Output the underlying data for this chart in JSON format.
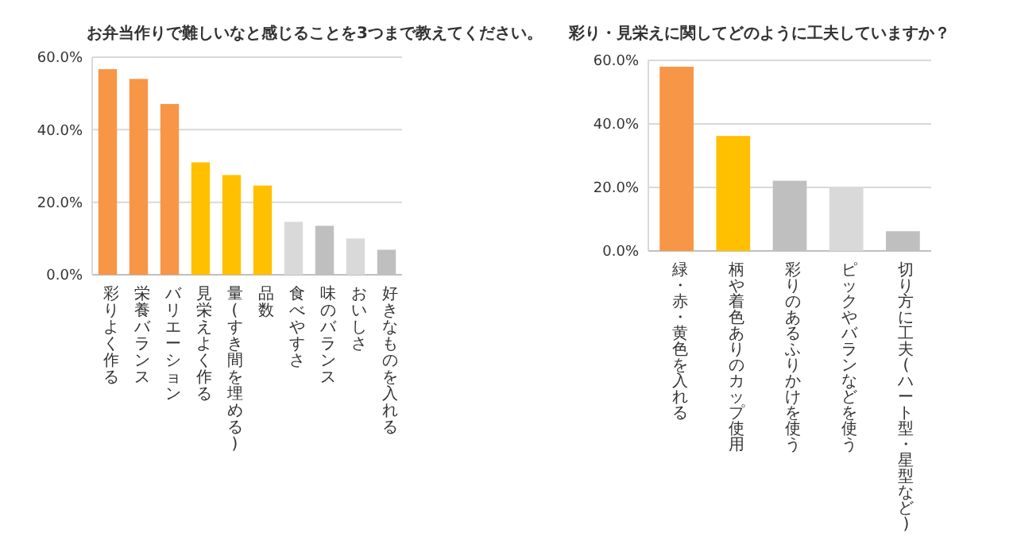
{
  "chart_data": [
    {
      "type": "bar",
      "title": "お弁当作りで難しいなと感じることを3つまで教えてください。",
      "categories": [
        "彩りよく作る",
        "栄養バランス",
        "バリエーション",
        "見栄えよく作る",
        "量(すき間を埋める)",
        "品数",
        "食べやすさ",
        "味のバランス",
        "おいしさ",
        "好きなものを入れる"
      ],
      "values": [
        56.7,
        54.0,
        47.1,
        31.0,
        27.5,
        24.6,
        14.6,
        13.5,
        10.0,
        6.9
      ],
      "colors": [
        "#f79646",
        "#f79646",
        "#f79646",
        "#ffc000",
        "#ffc000",
        "#ffc000",
        "#d9d9d9",
        "#bfbfbf",
        "#d9d9d9",
        "#bfbfbf"
      ],
      "ylim": [
        0,
        60
      ],
      "yticks": [
        {
          "value": 0,
          "label": "0.0%"
        },
        {
          "value": 20,
          "label": "20.0%"
        },
        {
          "value": 40,
          "label": "40.0%"
        },
        {
          "value": 60,
          "label": "60.0%"
        }
      ],
      "grid": "y"
    },
    {
      "type": "bar",
      "title": "彩り・見栄えに関してどのように工夫していますか？",
      "categories": [
        "緑・赤・黄色を入れる",
        "柄や着色ありのカップ使用",
        "彩りのあるふりかけを使う",
        "ピックやバランなどを使う",
        "切り方に工夫(ハート型・星型など)"
      ],
      "values": [
        58.0,
        36.2,
        22.1,
        19.9,
        6.2
      ],
      "colors": [
        "#f79646",
        "#ffc000",
        "#bfbfbf",
        "#d9d9d9",
        "#bfbfbf"
      ],
      "ylim": [
        0,
        60
      ],
      "yticks": [
        {
          "value": 0,
          "label": "0.0%"
        },
        {
          "value": 20,
          "label": "20.0%"
        },
        {
          "value": 40,
          "label": "40.0%"
        },
        {
          "value": 60,
          "label": "60.0%"
        }
      ],
      "grid": "y"
    }
  ]
}
